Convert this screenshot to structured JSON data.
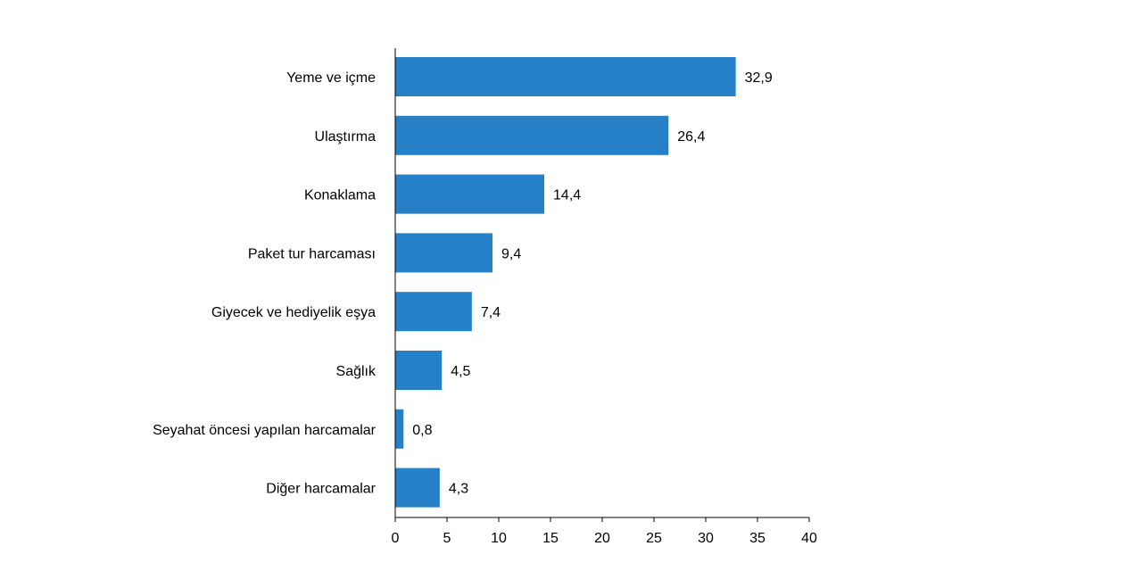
{
  "chart_data": {
    "type": "bar",
    "orientation": "horizontal",
    "categories": [
      "Yeme ve içme",
      "Ulaştırma",
      "Konaklama",
      "Paket tur harcaması",
      "Giyecek ve hediyelik eşya",
      "Sağlık",
      "Seyahat öncesi yapılan harcamalar",
      "Diğer harcamalar"
    ],
    "values": [
      32.9,
      26.4,
      14.4,
      9.4,
      7.4,
      4.5,
      0.8,
      4.3
    ],
    "value_labels": [
      "32,9",
      "26,4",
      "14,4",
      "9,4",
      "7,4",
      "4,5",
      "0,8",
      "4,3"
    ],
    "xlim": [
      0,
      40
    ],
    "xticks": [
      "0",
      "5",
      "10",
      "15",
      "20",
      "25",
      "30",
      "35",
      "40"
    ],
    "grid": false,
    "bar_color": "#2680c8"
  }
}
